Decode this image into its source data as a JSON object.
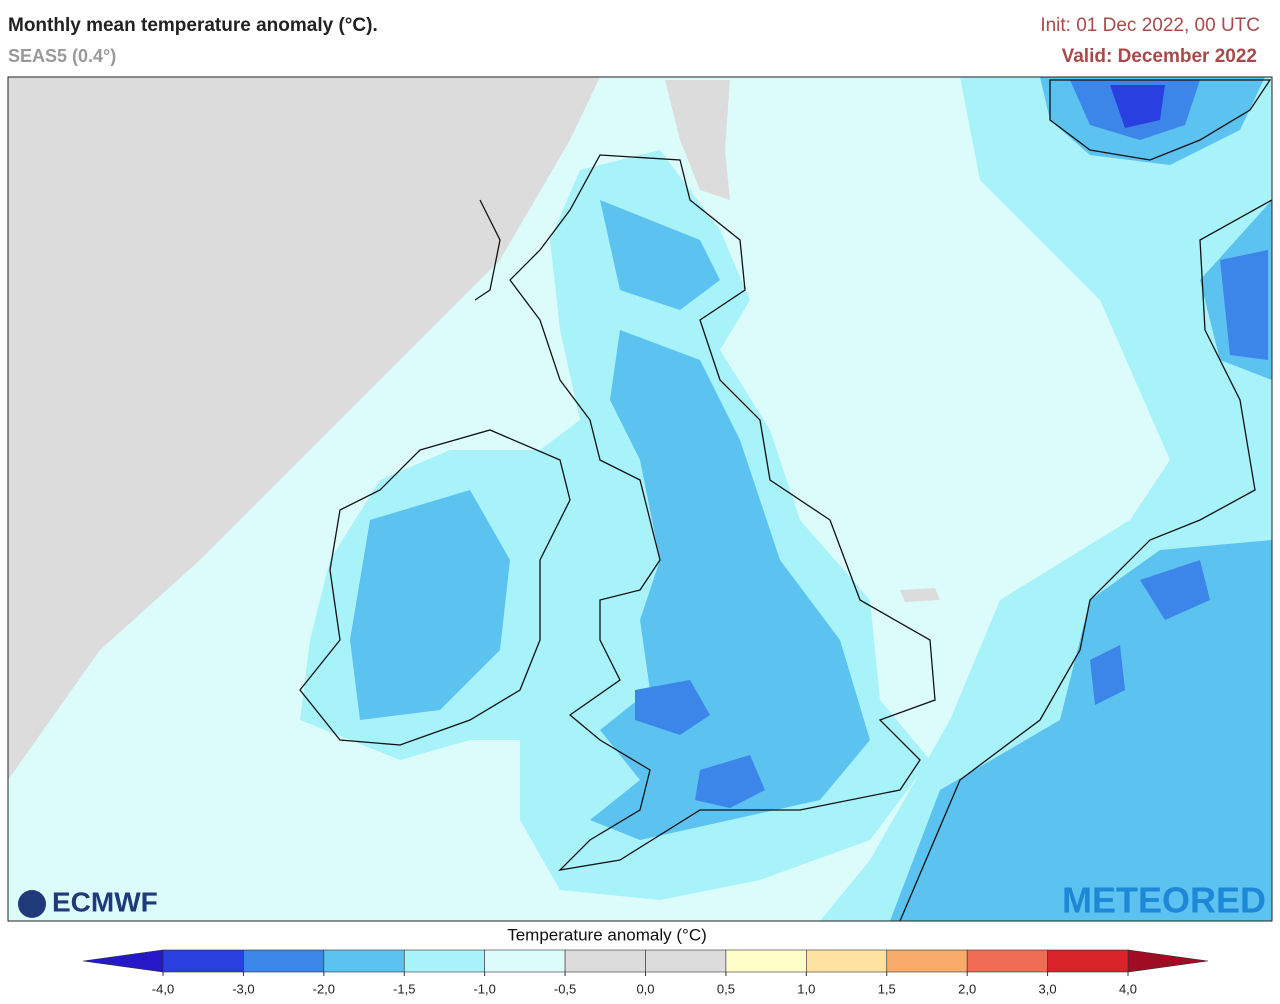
{
  "header": {
    "title": "Monthly mean temperature anomaly (°C).",
    "subtitle": "SEAS5 (0.4°)",
    "init": "Init: 01 Dec 2022, 00 UTC",
    "valid": "Valid: December 2022"
  },
  "logos": {
    "left": "ECMWF",
    "right": "METEORED"
  },
  "colorbar": {
    "label": "Temperature anomaly (°C)",
    "ticks": [
      {
        "value": -4,
        "label": "-4,0"
      },
      {
        "value": -3,
        "label": "-3,0"
      },
      {
        "value": -2,
        "label": "-2,0"
      },
      {
        "value": -1.5,
        "label": "-1,5"
      },
      {
        "value": -1,
        "label": "-1,0"
      },
      {
        "value": -0.5,
        "label": "-0,5"
      },
      {
        "value": 0,
        "label": "0,0"
      },
      {
        "value": 0.5,
        "label": "0,5"
      },
      {
        "value": 1,
        "label": "1,0"
      },
      {
        "value": 1.5,
        "label": "1,5"
      },
      {
        "value": 2,
        "label": "2,0"
      },
      {
        "value": 3,
        "label": "3,0"
      },
      {
        "value": 4,
        "label": "4,0"
      }
    ],
    "colors": [
      "#2a3fe0",
      "#3b86e8",
      "#5cc2f0",
      "#a8f2fa",
      "#dcfcfc",
      "#dcdcdc",
      "#dcdcdc",
      "#fefec8",
      "#fde2a2",
      "#f8aa6a",
      "#f06c52",
      "#d82428"
    ],
    "under_color": "#2418c8",
    "over_color": "#a00c24"
  }
}
